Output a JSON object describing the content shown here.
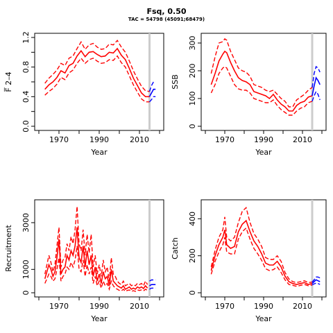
{
  "header": {
    "title": "Fsq, 0.50",
    "subtitle": "TAC = 54798 (45091;68479)"
  },
  "colors": {
    "historic": "#ff0000",
    "projection": "#0000ff",
    "assessment_year_line": "#cccccc"
  },
  "chart_data": [
    {
      "type": "line",
      "id": "fbar",
      "ylabel": "F̅ 2–4",
      "xlabel": "Year",
      "xlim": [
        1960,
        2020
      ],
      "ylim": [
        0,
        1.2
      ],
      "xticks": [
        1970,
        1990,
        2010
      ],
      "yticks": [
        0.0,
        0.4,
        0.8,
        1.2
      ],
      "yticks_minor": [
        0.2,
        0.6,
        1.0
      ],
      "vline_year": 2015,
      "historic": {
        "x": [
          1963,
          1965,
          1967,
          1969,
          1971,
          1973,
          1975,
          1977,
          1979,
          1981,
          1983,
          1985,
          1987,
          1989,
          1991,
          1993,
          1995,
          1997,
          1999,
          2001,
          2003,
          2005,
          2007,
          2009,
          2011,
          2013,
          2015
        ],
        "mid": [
          0.5,
          0.56,
          0.6,
          0.66,
          0.75,
          0.72,
          0.82,
          0.85,
          0.95,
          1.02,
          0.94,
          1.0,
          1.01,
          0.97,
          0.94,
          0.95,
          1.0,
          0.99,
          1.05,
          0.96,
          0.9,
          0.78,
          0.65,
          0.55,
          0.45,
          0.4,
          0.4
        ],
        "lower": [
          0.42,
          0.47,
          0.51,
          0.57,
          0.66,
          0.63,
          0.72,
          0.76,
          0.85,
          0.92,
          0.85,
          0.9,
          0.92,
          0.88,
          0.85,
          0.86,
          0.9,
          0.89,
          0.95,
          0.86,
          0.8,
          0.68,
          0.56,
          0.46,
          0.37,
          0.33,
          0.33
        ],
        "upper": [
          0.58,
          0.65,
          0.7,
          0.76,
          0.85,
          0.82,
          0.92,
          0.95,
          1.05,
          1.14,
          1.04,
          1.1,
          1.12,
          1.07,
          1.04,
          1.05,
          1.11,
          1.1,
          1.16,
          1.07,
          1.0,
          0.88,
          0.75,
          0.64,
          0.54,
          0.48,
          0.47
        ]
      },
      "projection": {
        "x": [
          2015,
          2016,
          2017,
          2018
        ],
        "mid": [
          0.4,
          0.45,
          0.5,
          0.5
        ],
        "lower": [
          0.33,
          0.36,
          0.4,
          0.4
        ],
        "upper": [
          0.47,
          0.55,
          0.6,
          0.6
        ]
      }
    },
    {
      "type": "line",
      "id": "ssb",
      "ylabel": "SSB",
      "xlabel": "Year",
      "xlim": [
        1960,
        2020
      ],
      "ylim": [
        0,
        320
      ],
      "xticks": [
        1970,
        1990,
        2010
      ],
      "yticks": [
        0,
        100,
        200,
        300
      ],
      "vline_year": 2015,
      "historic": {
        "x": [
          1963,
          1965,
          1967,
          1969,
          1970,
          1971,
          1973,
          1975,
          1977,
          1979,
          1981,
          1983,
          1985,
          1987,
          1989,
          1991,
          1993,
          1995,
          1997,
          1999,
          2001,
          2003,
          2005,
          2007,
          2009,
          2011,
          2013,
          2015
        ],
        "mid": [
          150,
          190,
          235,
          260,
          270,
          265,
          230,
          200,
          175,
          165,
          160,
          150,
          125,
          120,
          115,
          110,
          100,
          115,
          95,
          80,
          70,
          55,
          55,
          75,
          85,
          90,
          105,
          110
        ],
        "lower": [
          120,
          150,
          190,
          210,
          215,
          210,
          180,
          150,
          135,
          130,
          130,
          120,
          100,
          95,
          90,
          85,
          85,
          95,
          75,
          60,
          50,
          40,
          40,
          55,
          65,
          70,
          85,
          90
        ],
        "upper": [
          190,
          250,
          300,
          305,
          315,
          310,
          270,
          240,
          210,
          200,
          195,
          180,
          150,
          145,
          140,
          130,
          125,
          130,
          115,
          100,
          90,
          70,
          70,
          95,
          105,
          115,
          130,
          140
        ]
      },
      "projection": {
        "x": [
          2015,
          2016,
          2017,
          2018,
          2019
        ],
        "mid": [
          110,
          145,
          175,
          165,
          150
        ],
        "lower": [
          90,
          110,
          125,
          115,
          95
        ],
        "upper": [
          140,
          190,
          215,
          210,
          195
        ]
      }
    },
    {
      "type": "line",
      "id": "recruitment",
      "ylabel": "Recruitment",
      "xlabel": "Year",
      "xlim": [
        1960,
        2020
      ],
      "ylim": [
        0,
        3800
      ],
      "xticks": [
        1970,
        1990,
        2010
      ],
      "yticks": [
        0,
        1000,
        3000
      ],
      "vline_year": 2015,
      "historic": {
        "x": [
          1963,
          1964,
          1965,
          1966,
          1967,
          1968,
          1969,
          1970,
          1971,
          1972,
          1973,
          1974,
          1975,
          1976,
          1977,
          1978,
          1979,
          1980,
          1981,
          1982,
          1983,
          1984,
          1985,
          1986,
          1987,
          1988,
          1989,
          1990,
          1991,
          1992,
          1993,
          1994,
          1995,
          1996,
          1997,
          1998,
          1999,
          2000,
          2001,
          2002,
          2003,
          2004,
          2005,
          2006,
          2007,
          2008,
          2009,
          2010,
          2011,
          2012,
          2013,
          2014
        ],
        "mid": [
          600,
          900,
          1200,
          1000,
          700,
          900,
          1500,
          2300,
          800,
          1000,
          1100,
          1600,
          1400,
          1800,
          1600,
          2000,
          2800,
          1500,
          1300,
          2000,
          1100,
          1800,
          1200,
          1600,
          700,
          1100,
          500,
          800,
          400,
          900,
          600,
          700,
          300,
          1000,
          500,
          400,
          300,
          250,
          200,
          300,
          150,
          200,
          250,
          150,
          200,
          150,
          250,
          200,
          250,
          180,
          300,
          200
        ],
        "lower": [
          400,
          600,
          800,
          700,
          500,
          600,
          1000,
          1500,
          500,
          700,
          800,
          1100,
          1000,
          1300,
          1100,
          1400,
          2000,
          1000,
          900,
          1400,
          700,
          1200,
          800,
          1100,
          400,
          700,
          300,
          500,
          200,
          500,
          300,
          400,
          150,
          500,
          300,
          200,
          150,
          100,
          80,
          150,
          60,
          100,
          120,
          60,
          90,
          60,
          120,
          100,
          120,
          80,
          150,
          100
        ],
        "upper": [
          800,
          1200,
          1600,
          1300,
          900,
          1200,
          2000,
          2800,
          1100,
          1400,
          1500,
          2100,
          1800,
          2400,
          2100,
          2700,
          3700,
          2100,
          1800,
          2700,
          1600,
          2500,
          1700,
          2500,
          1100,
          1600,
          800,
          1200,
          700,
          1400,
          900,
          1100,
          500,
          1500,
          800,
          700,
          500,
          400,
          350,
          500,
          300,
          350,
          400,
          300,
          350,
          300,
          400,
          350,
          400,
          300,
          500,
          350
        ]
      },
      "projection": {
        "x": [
          2015,
          2016,
          2017,
          2018
        ],
        "mid": [
          300,
          350,
          350,
          350
        ],
        "lower": [
          150,
          200,
          200,
          200
        ],
        "upper": [
          500,
          550,
          550,
          550
        ]
      }
    },
    {
      "type": "line",
      "id": "catch",
      "ylabel": "Catch",
      "xlabel": "Year",
      "xlim": [
        1960,
        2020
      ],
      "ylim": [
        0,
        480
      ],
      "xticks": [
        1970,
        1990,
        2010
      ],
      "yticks": [
        0,
        200,
        400
      ],
      "vline_year": 2015,
      "historic": {
        "x": [
          1963,
          1965,
          1967,
          1969,
          1970,
          1971,
          1973,
          1975,
          1977,
          1979,
          1981,
          1983,
          1985,
          1987,
          1989,
          1991,
          1993,
          1995,
          1997,
          1999,
          2001,
          2003,
          2005,
          2007,
          2009,
          2011,
          2013,
          2015
        ],
        "mid": [
          120,
          200,
          260,
          300,
          340,
          260,
          240,
          250,
          330,
          370,
          390,
          330,
          280,
          250,
          210,
          160,
          150,
          150,
          170,
          140,
          90,
          60,
          50,
          45,
          50,
          55,
          45,
          50
        ],
        "lower": [
          100,
          170,
          220,
          260,
          300,
          220,
          210,
          210,
          290,
          330,
          350,
          290,
          240,
          210,
          175,
          130,
          120,
          125,
          140,
          110,
          70,
          45,
          40,
          35,
          40,
          45,
          38,
          42
        ],
        "upper": [
          140,
          230,
          300,
          340,
          410,
          300,
          280,
          300,
          380,
          440,
          460,
          380,
          320,
          290,
          250,
          190,
          180,
          180,
          200,
          170,
          110,
          75,
          60,
          55,
          60,
          65,
          55,
          58
        ]
      },
      "projection": {
        "x": [
          2015,
          2016,
          2017,
          2018,
          2019
        ],
        "mid": [
          50,
          60,
          70,
          65,
          60
        ],
        "lower": [
          42,
          48,
          52,
          50,
          45
        ],
        "upper": [
          58,
          70,
          85,
          85,
          80
        ]
      }
    }
  ]
}
